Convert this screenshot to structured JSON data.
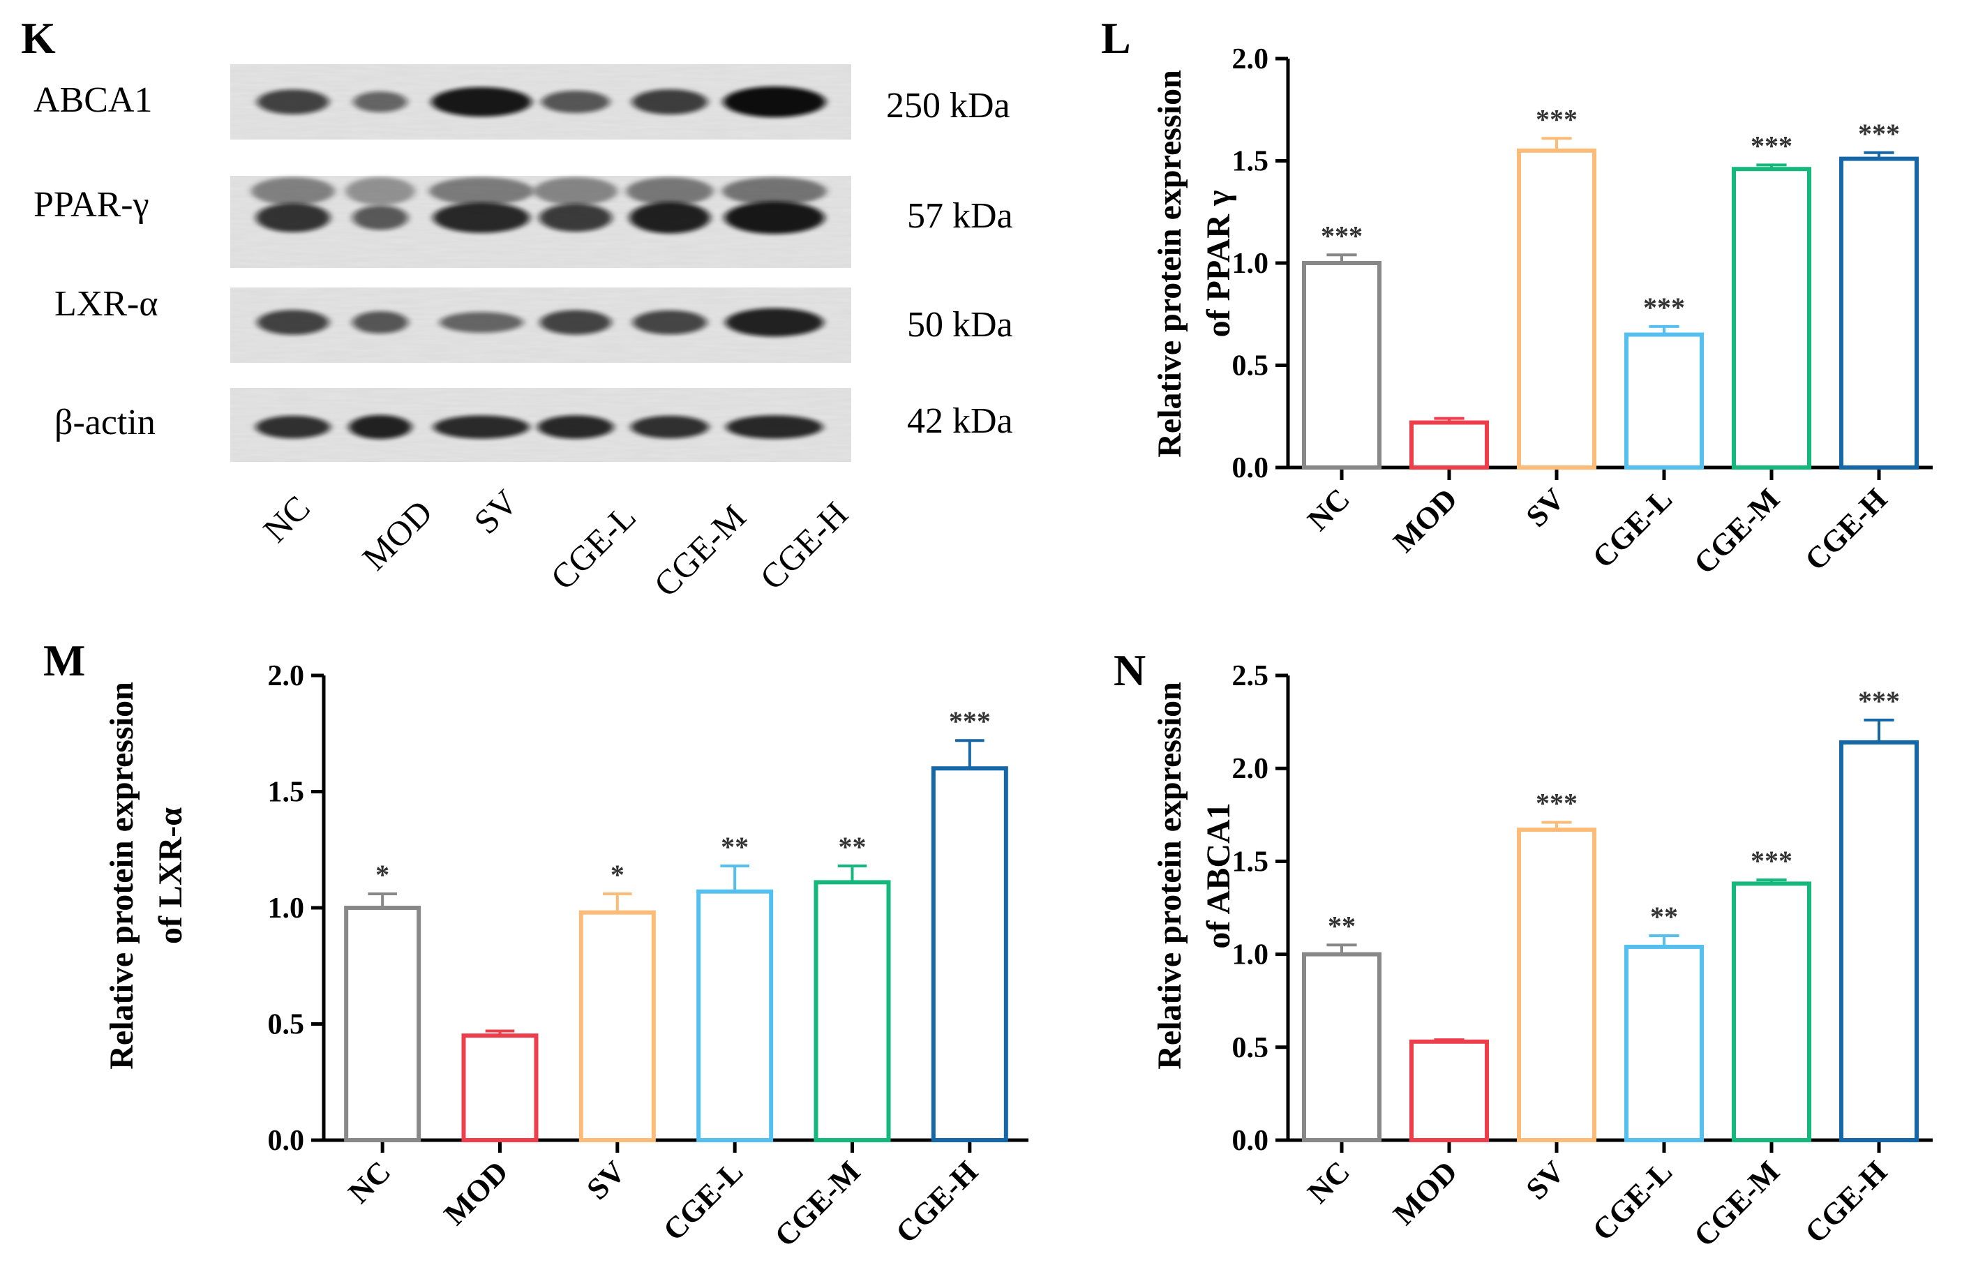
{
  "figure": {
    "panels": {
      "K": "K",
      "L": "L",
      "M": "M",
      "N": "N"
    }
  },
  "western_blot": {
    "panel": "K",
    "proteins": [
      {
        "name": "ABCA1",
        "size": "250 kDa",
        "intensities": [
          0.62,
          0.36,
          0.92,
          0.46,
          0.64,
          1.0
        ]
      },
      {
        "name": "PPAR-γ",
        "size": "57 kDa",
        "intensities": [
          0.72,
          0.45,
          0.8,
          0.66,
          0.86,
          0.92
        ]
      },
      {
        "name": "LXR-α",
        "size": "50 kDa",
        "intensities": [
          0.62,
          0.46,
          0.35,
          0.6,
          0.58,
          0.85
        ]
      },
      {
        "name": "β-actin",
        "size": "42 kDa",
        "intensities": [
          0.74,
          0.84,
          0.78,
          0.8,
          0.74,
          0.8
        ]
      }
    ],
    "lanes": [
      "NC",
      "MOD",
      "SV",
      "CGE-L",
      "CGE-M",
      "CGE-H"
    ]
  },
  "colors": {
    "NC": "#888888",
    "MOD": "#ee3d4b",
    "SV": "#fdbb78",
    "CGE-L": "#55c0ef",
    "CGE-M": "#14b87d",
    "CGE-H": "#1667a8",
    "axis": "#000000"
  },
  "chart_data": [
    {
      "panel": "L",
      "type": "bar",
      "ylabel_line1": "Relative protein expression",
      "ylabel_line2": "of PPAR γ",
      "categories": [
        "NC",
        "MOD",
        "SV",
        "CGE-L",
        "CGE-M",
        "CGE-H"
      ],
      "values": [
        1.0,
        0.22,
        1.55,
        0.65,
        1.46,
        1.51
      ],
      "errors": [
        0.04,
        0.02,
        0.06,
        0.04,
        0.02,
        0.03
      ],
      "significance": [
        "***",
        "",
        "***",
        "***",
        "***",
        "***"
      ],
      "ylim": [
        0,
        2.0
      ],
      "yticks": [
        "0.0",
        "0.5",
        "1.0",
        "1.5",
        "2.0"
      ]
    },
    {
      "panel": "M",
      "type": "bar",
      "ylabel_line1": "Relative protein expression",
      "ylabel_line2": "of LXR-α",
      "categories": [
        "NC",
        "MOD",
        "SV",
        "CGE-L",
        "CGE-M",
        "CGE-H"
      ],
      "values": [
        1.0,
        0.45,
        0.98,
        1.07,
        1.11,
        1.6
      ],
      "errors": [
        0.06,
        0.02,
        0.08,
        0.11,
        0.07,
        0.12
      ],
      "significance": [
        "*",
        "",
        "*",
        "**",
        "**",
        "***"
      ],
      "ylim": [
        0,
        2.0
      ],
      "yticks": [
        "0.0",
        "0.5",
        "1.0",
        "1.5",
        "2.0"
      ]
    },
    {
      "panel": "N",
      "type": "bar",
      "ylabel_line1": "Relative protein expression",
      "ylabel_line2": "of ABCA1",
      "categories": [
        "NC",
        "MOD",
        "SV",
        "CGE-L",
        "CGE-M",
        "CGE-H"
      ],
      "values": [
        1.0,
        0.53,
        1.67,
        1.04,
        1.38,
        2.14
      ],
      "errors": [
        0.05,
        0.01,
        0.04,
        0.06,
        0.02,
        0.12
      ],
      "significance": [
        "**",
        "",
        "***",
        "**",
        "***",
        "***"
      ],
      "ylim": [
        0,
        2.5
      ],
      "yticks": [
        "0.0",
        "0.5",
        "1.0",
        "1.5",
        "2.0",
        "2.5"
      ]
    }
  ]
}
